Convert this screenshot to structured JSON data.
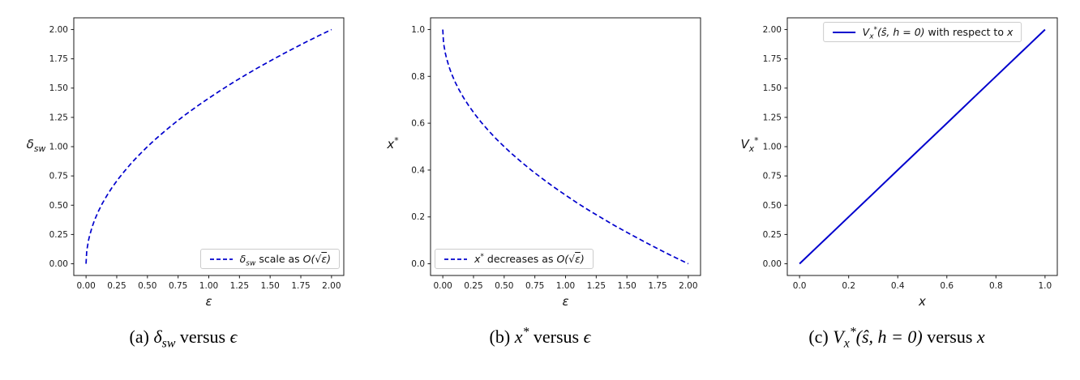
{
  "figure": {
    "captions": [
      "(a) $δ_{sw}$ versus $ϵ$",
      "(b) $x^{*}$ versus $ϵ$",
      "(c) $V_{x}^{*}(ŝ, h = 0)$ versus $x$"
    ]
  },
  "chart_data": [
    {
      "type": "line",
      "panel": "a",
      "title": "",
      "xlabel": "$ε$",
      "ylabel": "$δ_{sw}$",
      "xlim": [
        -0.1,
        2.1
      ],
      "ylim": [
        -0.1,
        2.1
      ],
      "grid": false,
      "xticks": {
        "values": [
          0,
          0.25,
          0.5,
          0.75,
          1,
          1.25,
          1.5,
          1.75,
          2
        ],
        "labels": [
          "0.00",
          "0.25",
          "0.50",
          "0.75",
          "1.00",
          "1.25",
          "1.50",
          "1.75",
          "2.00"
        ]
      },
      "yticks": {
        "values": [
          0,
          0.25,
          0.5,
          0.75,
          1,
          1.25,
          1.5,
          1.75,
          2
        ],
        "labels": [
          "0.00",
          "0.25",
          "0.50",
          "0.75",
          "1.00",
          "1.25",
          "1.50",
          "1.75",
          "2.00"
        ]
      },
      "line": {
        "style": "dashed",
        "width": 1.7,
        "color": "#0000cd"
      },
      "legend": {
        "label": "$δ_{sw}$ scale as $O(\\sqrt{ε})$",
        "position": "lower-right"
      },
      "x": [
        0,
        0.005,
        0.01,
        0.02,
        0.03,
        0.05,
        0.07,
        0.1,
        0.13,
        0.17,
        0.21,
        0.26,
        0.31,
        0.37,
        0.43,
        0.5,
        0.57,
        0.65,
        0.73,
        0.81,
        0.9,
        1.0,
        1.1,
        1.2,
        1.3,
        1.4,
        1.5,
        1.6,
        1.7,
        1.8,
        1.9,
        2.0
      ],
      "y": [
        0,
        0.1,
        0.141,
        0.2,
        0.245,
        0.316,
        0.374,
        0.447,
        0.51,
        0.583,
        0.648,
        0.721,
        0.787,
        0.86,
        0.927,
        1.0,
        1.068,
        1.14,
        1.208,
        1.273,
        1.342,
        1.414,
        1.483,
        1.549,
        1.612,
        1.673,
        1.732,
        1.789,
        1.844,
        1.897,
        1.949,
        2.0
      ]
    },
    {
      "type": "line",
      "panel": "b",
      "title": "",
      "xlabel": "$ε$",
      "ylabel": "$x^{*}$",
      "xlim": [
        -0.1,
        2.1
      ],
      "ylim": [
        -0.05,
        1.05
      ],
      "grid": false,
      "xticks": {
        "values": [
          0,
          0.25,
          0.5,
          0.75,
          1,
          1.25,
          1.5,
          1.75,
          2
        ],
        "labels": [
          "0.00",
          "0.25",
          "0.50",
          "0.75",
          "1.00",
          "1.25",
          "1.50",
          "1.75",
          "2.00"
        ]
      },
      "yticks": {
        "values": [
          0,
          0.2,
          0.4,
          0.6,
          0.8,
          1.0
        ],
        "labels": [
          "0.0",
          "0.2",
          "0.4",
          "0.6",
          "0.8",
          "1.0"
        ]
      },
      "line": {
        "style": "dashed",
        "width": 1.7,
        "color": "#0000cd"
      },
      "legend": {
        "label": "$x^{*}$ decreases as $O(\\sqrt{ε})$",
        "position": "lower-left"
      },
      "x": [
        0,
        0.005,
        0.01,
        0.02,
        0.03,
        0.05,
        0.07,
        0.1,
        0.13,
        0.17,
        0.21,
        0.26,
        0.31,
        0.37,
        0.43,
        0.5,
        0.57,
        0.65,
        0.73,
        0.81,
        0.9,
        1.0,
        1.1,
        1.2,
        1.3,
        1.4,
        1.5,
        1.6,
        1.7,
        1.8,
        1.9,
        2.0
      ],
      "y": [
        1.0,
        0.95,
        0.929,
        0.9,
        0.878,
        0.842,
        0.813,
        0.776,
        0.745,
        0.708,
        0.676,
        0.639,
        0.606,
        0.57,
        0.536,
        0.5,
        0.466,
        0.43,
        0.396,
        0.364,
        0.329,
        0.293,
        0.258,
        0.225,
        0.194,
        0.163,
        0.134,
        0.106,
        0.078,
        0.051,
        0.025,
        0.0
      ]
    },
    {
      "type": "line",
      "panel": "c",
      "title": "",
      "xlabel": "$x$",
      "ylabel": "$V_{x}^{*}$",
      "xlim": [
        -0.05,
        1.05
      ],
      "ylim": [
        -0.1,
        2.1
      ],
      "grid": false,
      "xticks": {
        "values": [
          0,
          0.2,
          0.4,
          0.6,
          0.8,
          1.0
        ],
        "labels": [
          "0.0",
          "0.2",
          "0.4",
          "0.6",
          "0.8",
          "1.0"
        ]
      },
      "yticks": {
        "values": [
          0,
          0.25,
          0.5,
          0.75,
          1,
          1.25,
          1.5,
          1.75,
          2
        ],
        "labels": [
          "0.00",
          "0.25",
          "0.50",
          "0.75",
          "1.00",
          "1.25",
          "1.50",
          "1.75",
          "2.00"
        ]
      },
      "line": {
        "style": "solid",
        "width": 2,
        "color": "#0000cd"
      },
      "legend": {
        "label": "$V_{x}^{*}(ŝ, h = 0)$ with respect to $x$",
        "position": "upper-center"
      },
      "x": [
        0,
        0.1,
        0.2,
        0.3,
        0.4,
        0.5,
        0.6,
        0.7,
        0.8,
        0.9,
        1.0
      ],
      "y": [
        0,
        0.2,
        0.4,
        0.6,
        0.8,
        1.0,
        1.2,
        1.4,
        1.6,
        1.8,
        2.0
      ]
    }
  ]
}
